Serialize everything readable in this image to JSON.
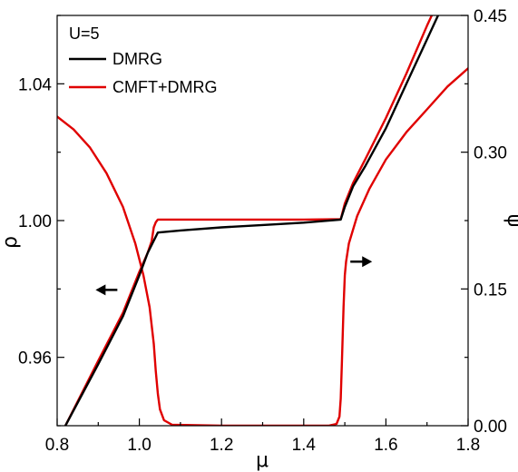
{
  "chart_data": {
    "type": "line",
    "annotation": "U=5",
    "xlabel": "μ",
    "ylabel_left": "ρ",
    "ylabel_right": "ψ",
    "xlim": [
      0.8,
      1.8
    ],
    "ylim_left": [
      0.94,
      1.06
    ],
    "ylim_right": [
      0.0,
      0.45
    ],
    "xticks": [
      "0.8",
      "1.0",
      "1.2",
      "1.4",
      "1.6",
      "1.8"
    ],
    "yticks_left": [
      "0.96",
      "1.00",
      "1.04"
    ],
    "yticks_right": [
      "0.00",
      "0.15",
      "0.30",
      "0.45"
    ],
    "legend": [
      {
        "name": "DMRG",
        "color": "#000000"
      },
      {
        "name": "CMFT+DMRG",
        "color": "#e00000"
      }
    ],
    "series": [
      {
        "name": "DMRG",
        "axis": "left",
        "color": "#000000",
        "x": [
          0.82,
          0.9,
          0.96,
          1.0,
          1.02,
          1.045,
          1.1,
          1.2,
          1.3,
          1.4,
          1.49,
          1.5,
          1.52,
          1.55,
          1.6,
          1.65,
          1.7,
          1.75
        ],
        "y": [
          0.94,
          0.958,
          0.972,
          0.984,
          0.9905,
          0.9965,
          0.9971,
          0.998,
          0.9987,
          0.9994,
          1.0003,
          1.004,
          1.01,
          1.016,
          1.027,
          1.04,
          1.053,
          1.066
        ]
      },
      {
        "name": "CMFT+DMRG",
        "axis": "left",
        "color": "#e00000",
        "x": [
          0.82,
          0.9,
          0.96,
          1.0,
          1.02,
          1.03,
          1.035,
          1.04,
          1.045,
          1.2,
          1.4,
          1.49,
          1.5,
          1.52,
          1.55,
          1.6,
          1.65,
          1.7,
          1.75
        ],
        "y": [
          0.94,
          0.959,
          0.973,
          0.985,
          0.9905,
          0.994,
          0.998,
          0.9995,
          1.0003,
          1.0003,
          1.0003,
          1.0004,
          1.005,
          1.011,
          1.018,
          1.03,
          1.043,
          1.057,
          1.07
        ]
      },
      {
        "name": "CMFT+DMRG ψ",
        "axis": "right",
        "color": "#e00000",
        "x": [
          0.8,
          0.84,
          0.88,
          0.92,
          0.96,
          0.99,
          1.01,
          1.025,
          1.035,
          1.04,
          1.045,
          1.05,
          1.06,
          1.08,
          1.2,
          1.4,
          1.46,
          1.48,
          1.487,
          1.49,
          1.493,
          1.497,
          1.5,
          1.503,
          1.51,
          1.53,
          1.56,
          1.6,
          1.65,
          1.7,
          1.75,
          1.8
        ],
        "y": [
          0.339,
          0.325,
          0.305,
          0.277,
          0.24,
          0.2,
          0.165,
          0.13,
          0.09,
          0.06,
          0.035,
          0.018,
          0.006,
          0.001,
          0.0,
          0.0,
          0.0,
          0.002,
          0.01,
          0.03,
          0.07,
          0.13,
          0.165,
          0.18,
          0.2,
          0.23,
          0.26,
          0.292,
          0.322,
          0.347,
          0.372,
          0.392
        ]
      }
    ],
    "arrows": [
      {
        "direction": "left",
        "x": 0.92,
        "y_right": 0.149
      },
      {
        "direction": "right",
        "x": 1.54,
        "y_right": 0.18
      }
    ]
  }
}
